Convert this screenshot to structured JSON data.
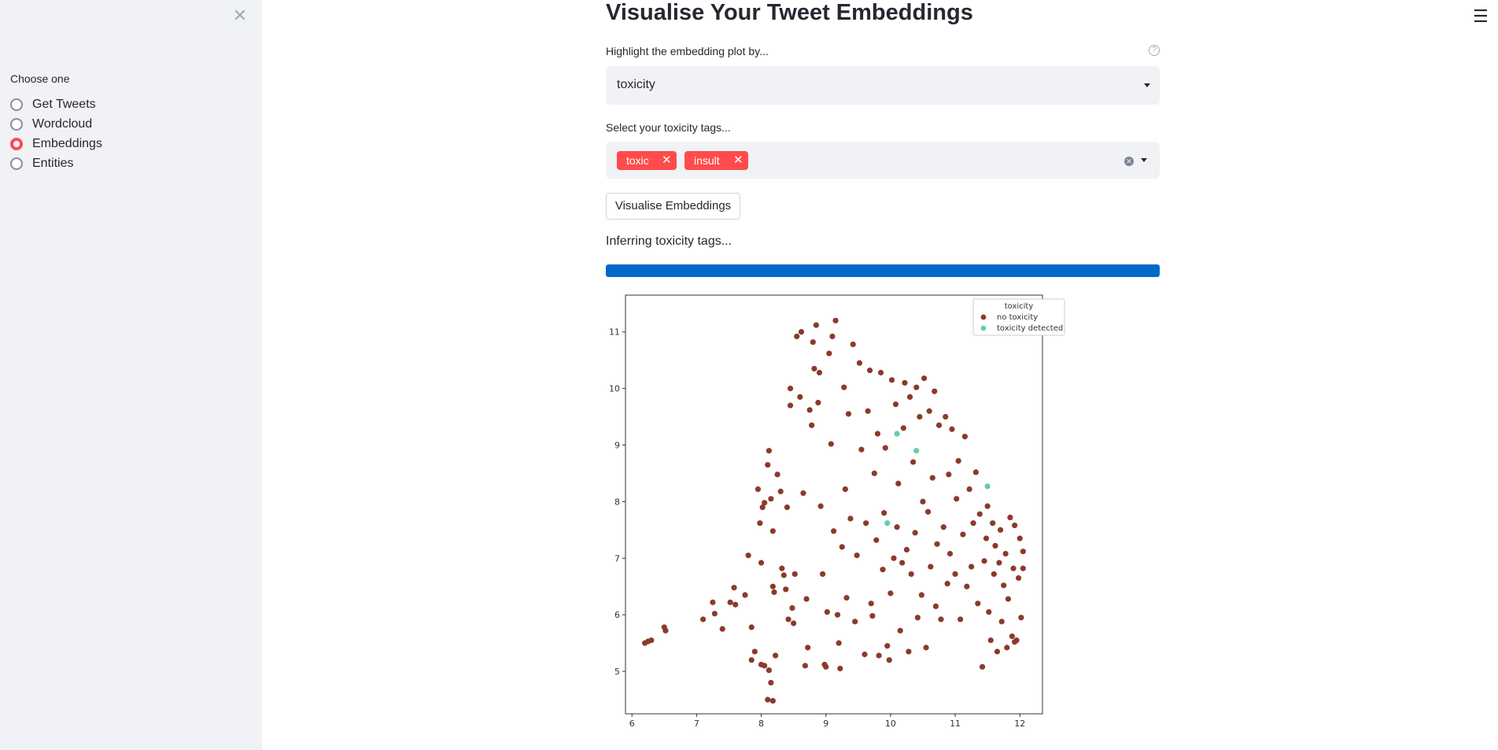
{
  "sidebar": {
    "close_icon": "close-icon",
    "label": "Choose one",
    "options": [
      "Get Tweets",
      "Wordcloud",
      "Embeddings",
      "Entities"
    ],
    "selected_index": 2
  },
  "main": {
    "title": "Visualise Your Tweet Embeddings",
    "highlight_label": "Highlight the embedding plot by...",
    "highlight_value": "toxicity",
    "tags_label": "Select your toxicity tags...",
    "tags": [
      "toxic",
      "insult"
    ],
    "button_label": "Visualise Embeddings",
    "status_text": "Inferring toxicity tags...",
    "progress": 1.0
  },
  "colors": {
    "accent": "#ff4b4b",
    "progress": "#0068c9",
    "no_toxicity": "#8b3a2a",
    "toxicity_detected": "#66cdaa"
  },
  "chart_data": {
    "type": "scatter",
    "title": "",
    "xlabel": "",
    "ylabel": "",
    "xlim": [
      5.9,
      12.35
    ],
    "ylim": [
      4.25,
      11.65
    ],
    "x_ticks": [
      6,
      7,
      8,
      9,
      10,
      11,
      12
    ],
    "y_ticks": [
      5,
      6,
      7,
      8,
      9,
      10,
      11
    ],
    "grid": false,
    "legend": {
      "title": "toxicity",
      "placement": "top-right"
    },
    "series": [
      {
        "name": "no toxicity",
        "color": "#8b3a2a",
        "points": [
          [
            6.2,
            5.5
          ],
          [
            6.25,
            5.53
          ],
          [
            6.3,
            5.55
          ],
          [
            6.5,
            5.78
          ],
          [
            6.52,
            5.72
          ],
          [
            7.1,
            5.92
          ],
          [
            7.25,
            6.22
          ],
          [
            7.28,
            6.02
          ],
          [
            7.4,
            5.75
          ],
          [
            7.52,
            6.22
          ],
          [
            7.58,
            6.48
          ],
          [
            7.6,
            6.18
          ],
          [
            7.75,
            6.35
          ],
          [
            7.8,
            7.05
          ],
          [
            7.85,
            5.2
          ],
          [
            7.85,
            5.78
          ],
          [
            7.9,
            5.35
          ],
          [
            7.95,
            8.22
          ],
          [
            7.98,
            7.62
          ],
          [
            8.0,
            6.92
          ],
          [
            8.0,
            5.12
          ],
          [
            8.02,
            7.9
          ],
          [
            8.05,
            7.98
          ],
          [
            8.05,
            5.1
          ],
          [
            8.1,
            8.65
          ],
          [
            8.12,
            8.9
          ],
          [
            8.12,
            5.02
          ],
          [
            8.15,
            8.05
          ],
          [
            8.18,
            7.48
          ],
          [
            8.18,
            6.5
          ],
          [
            8.2,
            6.4
          ],
          [
            8.22,
            5.28
          ],
          [
            8.15,
            4.8
          ],
          [
            8.1,
            4.5
          ],
          [
            8.18,
            4.48
          ],
          [
            8.25,
            8.48
          ],
          [
            8.3,
            8.18
          ],
          [
            8.32,
            6.82
          ],
          [
            8.35,
            6.7
          ],
          [
            8.38,
            6.45
          ],
          [
            8.4,
            7.9
          ],
          [
            8.42,
            5.92
          ],
          [
            8.45,
            9.7
          ],
          [
            8.45,
            10.0
          ],
          [
            8.48,
            6.12
          ],
          [
            8.5,
            5.85
          ],
          [
            8.52,
            6.72
          ],
          [
            8.55,
            10.92
          ],
          [
            8.6,
            9.85
          ],
          [
            8.62,
            11.0
          ],
          [
            8.65,
            8.15
          ],
          [
            8.68,
            5.1
          ],
          [
            8.7,
            6.28
          ],
          [
            8.72,
            5.42
          ],
          [
            8.75,
            9.62
          ],
          [
            8.78,
            9.35
          ],
          [
            8.8,
            10.82
          ],
          [
            8.82,
            10.35
          ],
          [
            8.85,
            11.12
          ],
          [
            8.88,
            9.75
          ],
          [
            8.9,
            10.28
          ],
          [
            8.92,
            7.92
          ],
          [
            8.95,
            6.72
          ],
          [
            8.98,
            5.12
          ],
          [
            9.0,
            5.08
          ],
          [
            9.02,
            6.05
          ],
          [
            9.05,
            10.62
          ],
          [
            9.08,
            9.02
          ],
          [
            9.1,
            10.92
          ],
          [
            9.12,
            7.48
          ],
          [
            9.15,
            11.2
          ],
          [
            9.18,
            6.0
          ],
          [
            9.2,
            5.5
          ],
          [
            9.22,
            5.05
          ],
          [
            9.25,
            7.2
          ],
          [
            9.28,
            10.02
          ],
          [
            9.3,
            8.22
          ],
          [
            9.32,
            6.3
          ],
          [
            9.35,
            9.55
          ],
          [
            9.38,
            7.7
          ],
          [
            9.42,
            10.78
          ],
          [
            9.45,
            5.88
          ],
          [
            9.48,
            7.05
          ],
          [
            9.52,
            10.45
          ],
          [
            9.55,
            8.92
          ],
          [
            9.6,
            5.3
          ],
          [
            9.62,
            7.62
          ],
          [
            9.65,
            9.6
          ],
          [
            9.68,
            10.32
          ],
          [
            9.7,
            6.2
          ],
          [
            9.72,
            5.98
          ],
          [
            9.75,
            8.5
          ],
          [
            9.78,
            7.32
          ],
          [
            9.8,
            9.2
          ],
          [
            9.82,
            5.28
          ],
          [
            9.85,
            10.28
          ],
          [
            9.88,
            6.8
          ],
          [
            9.9,
            7.8
          ],
          [
            9.92,
            8.95
          ],
          [
            9.95,
            5.45
          ],
          [
            9.98,
            5.2
          ],
          [
            10.0,
            6.38
          ],
          [
            10.02,
            10.15
          ],
          [
            10.05,
            7.0
          ],
          [
            10.08,
            9.72
          ],
          [
            10.1,
            7.55
          ],
          [
            10.12,
            8.32
          ],
          [
            10.15,
            5.72
          ],
          [
            10.18,
            6.92
          ],
          [
            10.2,
            9.3
          ],
          [
            10.22,
            10.1
          ],
          [
            10.25,
            7.15
          ],
          [
            10.28,
            5.35
          ],
          [
            10.3,
            9.85
          ],
          [
            10.32,
            6.72
          ],
          [
            10.35,
            8.7
          ],
          [
            10.38,
            7.45
          ],
          [
            10.4,
            10.02
          ],
          [
            10.42,
            5.95
          ],
          [
            10.45,
            9.5
          ],
          [
            10.48,
            6.35
          ],
          [
            10.5,
            8.0
          ],
          [
            10.52,
            10.18
          ],
          [
            10.55,
            5.42
          ],
          [
            10.58,
            7.82
          ],
          [
            10.6,
            9.6
          ],
          [
            10.62,
            6.85
          ],
          [
            10.65,
            8.42
          ],
          [
            10.68,
            9.95
          ],
          [
            10.7,
            6.15
          ],
          [
            10.72,
            7.25
          ],
          [
            10.75,
            9.35
          ],
          [
            10.78,
            5.92
          ],
          [
            10.82,
            7.55
          ],
          [
            10.85,
            9.5
          ],
          [
            10.88,
            6.55
          ],
          [
            10.9,
            8.48
          ],
          [
            10.92,
            7.08
          ],
          [
            10.95,
            9.28
          ],
          [
            11.0,
            6.72
          ],
          [
            11.02,
            8.05
          ],
          [
            11.05,
            8.72
          ],
          [
            11.08,
            5.92
          ],
          [
            11.12,
            7.42
          ],
          [
            11.15,
            9.15
          ],
          [
            11.18,
            6.5
          ],
          [
            11.22,
            8.22
          ],
          [
            11.25,
            6.85
          ],
          [
            11.28,
            7.62
          ],
          [
            11.32,
            8.52
          ],
          [
            11.35,
            6.2
          ],
          [
            11.38,
            7.78
          ],
          [
            11.42,
            5.08
          ],
          [
            11.45,
            6.95
          ],
          [
            11.48,
            7.35
          ],
          [
            11.5,
            7.92
          ],
          [
            11.52,
            6.05
          ],
          [
            11.55,
            5.55
          ],
          [
            11.58,
            7.62
          ],
          [
            11.6,
            6.72
          ],
          [
            11.62,
            7.22
          ],
          [
            11.65,
            5.35
          ],
          [
            11.68,
            6.92
          ],
          [
            11.7,
            7.5
          ],
          [
            11.72,
            5.88
          ],
          [
            11.75,
            6.52
          ],
          [
            11.78,
            7.08
          ],
          [
            11.8,
            5.42
          ],
          [
            11.82,
            6.28
          ],
          [
            11.85,
            7.72
          ],
          [
            11.88,
            5.62
          ],
          [
            11.9,
            6.82
          ],
          [
            11.92,
            7.58
          ],
          [
            11.95,
            5.55
          ],
          [
            11.98,
            6.65
          ],
          [
            12.0,
            7.35
          ],
          [
            12.02,
            5.95
          ],
          [
            12.05,
            6.82
          ],
          [
            12.05,
            7.12
          ],
          [
            11.92,
            5.52
          ]
        ]
      },
      {
        "name": "toxicity detected",
        "color": "#66cdaa",
        "points": [
          [
            10.1,
            9.2
          ],
          [
            10.4,
            8.9
          ],
          [
            11.5,
            8.27
          ],
          [
            9.95,
            7.62
          ]
        ]
      }
    ]
  }
}
